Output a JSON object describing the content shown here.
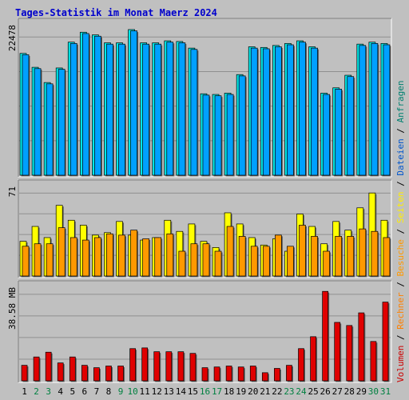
{
  "chart_data": {
    "type": "bar",
    "title": "Tages-Statistik im Monat Maerz 2024",
    "categories": [
      "1",
      "2",
      "3",
      "4",
      "5",
      "6",
      "7",
      "8",
      "9",
      "10",
      "11",
      "12",
      "13",
      "14",
      "15",
      "16",
      "17",
      "18",
      "19",
      "20",
      "21",
      "22",
      "23",
      "24",
      "25",
      "26",
      "27",
      "28",
      "29",
      "30",
      "31"
    ],
    "weekend_days": [
      2,
      3,
      9,
      10,
      16,
      17,
      23,
      24,
      30,
      31
    ],
    "panels": [
      {
        "id": "hits-files",
        "ymax": 22478,
        "ytick_label": "22478",
        "series": [
          {
            "name": "Anfragen",
            "color": "#00e8e8",
            "values": [
              18400,
              16300,
              14000,
              16200,
              20100,
              21600,
              21200,
              20000,
              20000,
              22000,
              20000,
              20000,
              20300,
              20200,
              19200,
              12300,
              12200,
              12400,
              15200,
              19400,
              19300,
              19600,
              19900,
              20300,
              19400,
              12400,
              13200,
              15100,
              19800,
              20100,
              19900
            ]
          },
          {
            "name": "Dateien",
            "color": "#00a0ff",
            "values": [
              18200,
              16100,
              13800,
              16000,
              19900,
              21400,
              21000,
              19800,
              19800,
              21800,
              19800,
              19800,
              20100,
              20000,
              19000,
              12100,
              12000,
              12200,
              15000,
              19200,
              19100,
              19400,
              19700,
              20100,
              19200,
              12200,
              13000,
              14900,
              19600,
              19900,
              19700
            ]
          }
        ]
      },
      {
        "id": "pages-visits",
        "ymax": 71,
        "ytick_label": "71",
        "series": [
          {
            "name": "Seiten",
            "color": "#ffff00",
            "values": [
              28,
              40,
              31,
              57,
              45,
              41,
              33,
              35,
              44,
              33,
              29,
              31,
              45,
              36,
              42,
              28,
              23,
              51,
              42,
              31,
              25,
              30,
              20,
              50,
              40,
              26,
              44,
              37,
              55,
              67,
              45
            ]
          },
          {
            "name": "Besuche",
            "color": "#ff9900",
            "values": [
              24,
              26,
              26,
              39,
              31,
              29,
              31,
              34,
              33,
              37,
              30,
              31,
              34,
              20,
              26,
              26,
              20,
              40,
              32,
              24,
              24,
              33,
              24,
              41,
              32,
              20,
              32,
              32,
              38,
              36,
              31
            ]
          }
        ]
      },
      {
        "id": "volume",
        "ymax": 38.58,
        "ytick_label": "38.58 MB",
        "series": [
          {
            "name": "Volumen",
            "color": "#e00000",
            "values": [
              6.5,
              10,
              12,
              7.5,
              10,
              6.5,
              5.5,
              6.2,
              6.2,
              13.5,
              13.8,
              12.2,
              12.2,
              12.2,
              11.5,
              5.5,
              5.8,
              6.2,
              5.8,
              6.2,
              3.4,
              5.2,
              6.5,
              13.5,
              18.5,
              37.5,
              24.5,
              23.2,
              28.5,
              16.5,
              33
            ]
          }
        ]
      }
    ],
    "side_legend": [
      {
        "label": "Volumen",
        "color": "#cc0000"
      },
      {
        "label": " / ",
        "color": "#000000"
      },
      {
        "label": "Rechner",
        "color": "#ff8000"
      },
      {
        "label": " / ",
        "color": "#000000"
      },
      {
        "label": "Besuche",
        "color": "#ff9900"
      },
      {
        "label": " / ",
        "color": "#000000"
      },
      {
        "label": "Seiten",
        "color": "#ffee00"
      },
      {
        "label": " / ",
        "color": "#000000"
      },
      {
        "label": "Dateien",
        "color": "#0055cc"
      },
      {
        "label": " / ",
        "color": "#000000"
      },
      {
        "label": "Anfragen",
        "color": "#008070"
      }
    ],
    "colors": {
      "background": "#c0c0c0",
      "title": "#0000cc",
      "weekday_label": "#000000",
      "weekend_label": "#008040",
      "grid": "#909090"
    }
  }
}
